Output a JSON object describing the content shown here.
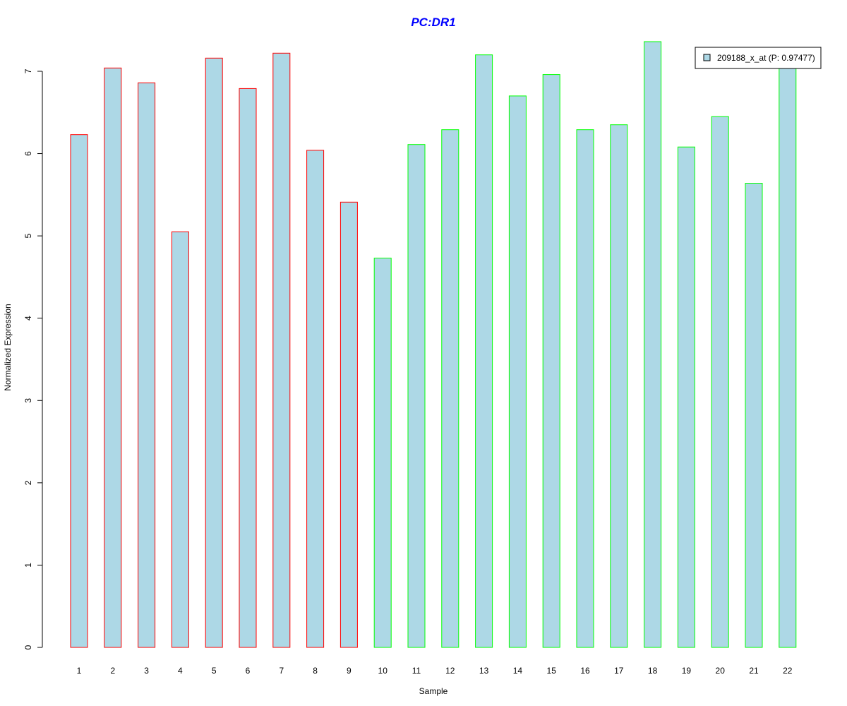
{
  "chart_data": {
    "type": "bar",
    "title": "PC:DR1",
    "xlabel": "Sample",
    "ylabel": "Normalized Expression",
    "categories": [
      "1",
      "2",
      "3",
      "4",
      "5",
      "6",
      "7",
      "8",
      "9",
      "10",
      "11",
      "12",
      "13",
      "14",
      "15",
      "16",
      "17",
      "18",
      "19",
      "20",
      "21",
      "22"
    ],
    "values": [
      6.23,
      7.04,
      6.86,
      5.05,
      7.16,
      6.79,
      7.22,
      6.04,
      5.41,
      4.73,
      6.11,
      6.29,
      7.2,
      6.7,
      6.96,
      6.29,
      6.35,
      7.36,
      6.08,
      6.45,
      5.64,
      7.07
    ],
    "groups": [
      "red",
      "red",
      "red",
      "red",
      "red",
      "red",
      "red",
      "red",
      "red",
      "green",
      "green",
      "green",
      "green",
      "green",
      "green",
      "green",
      "green",
      "green",
      "green",
      "green",
      "green",
      "green"
    ],
    "y_ticks": [
      0,
      1,
      2,
      3,
      4,
      5,
      6,
      7
    ],
    "ylim": [
      0,
      7.36
    ],
    "grid": false,
    "legend": {
      "position": "top-right",
      "label": "209188_x_at (P: 0.97477)"
    },
    "colors": {
      "bar_fill": "#add8e6",
      "group_red": "#ff0000",
      "group_green": "#00ff00",
      "title": "#0000ff"
    }
  }
}
